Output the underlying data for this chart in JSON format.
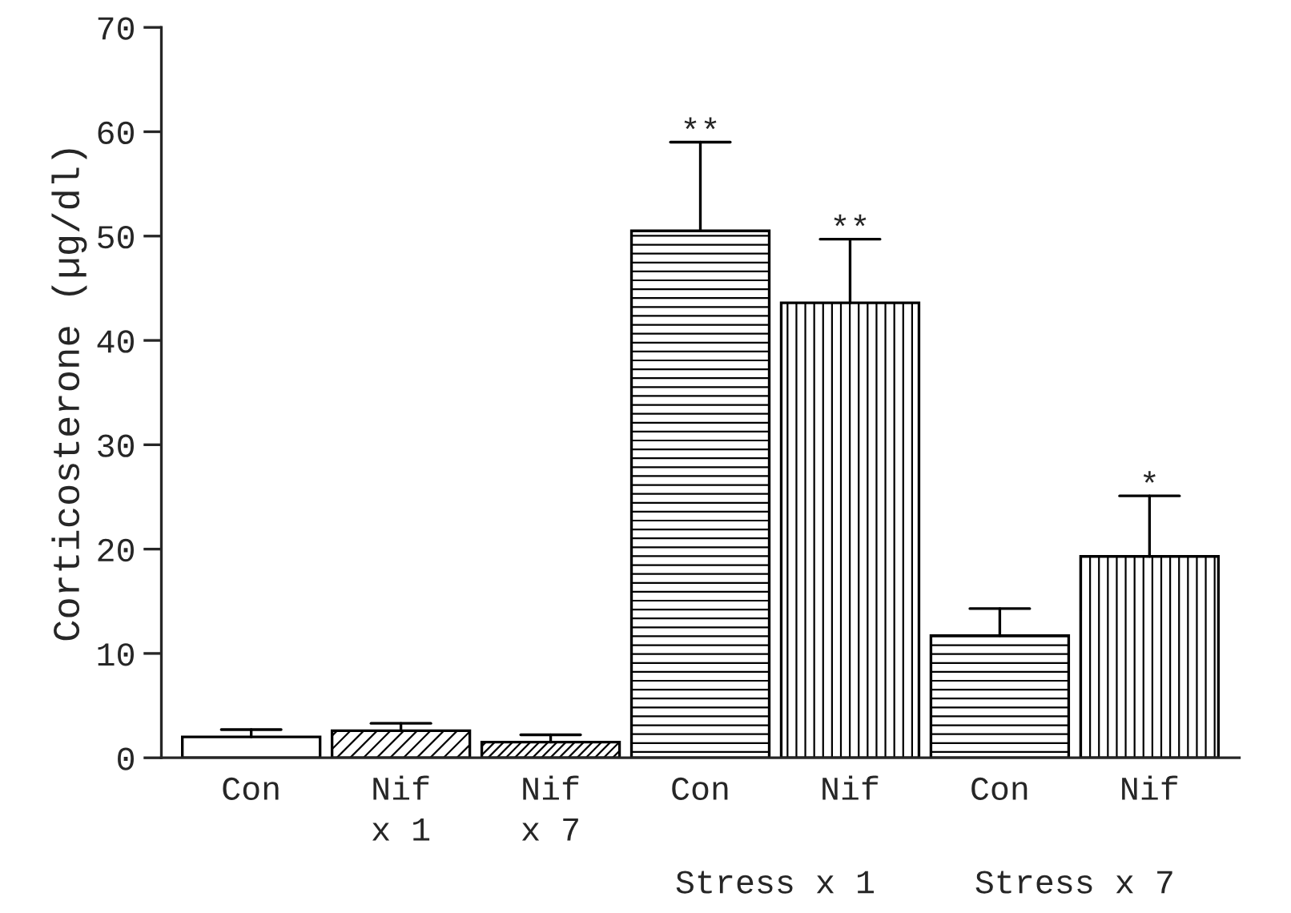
{
  "chart_data": {
    "type": "bar",
    "ylabel": "Corticosterone (µg/dl)",
    "categories": [
      "Con",
      "Nif\nx 1",
      "Nif\nx 7",
      "Con",
      "Nif",
      "Con",
      "Nif"
    ],
    "values": [
      2.0,
      2.6,
      1.5,
      50.5,
      43.6,
      11.7,
      19.3
    ],
    "errors": [
      [
        2.0,
        2.7
      ],
      [
        2.6,
        3.3
      ],
      [
        1.5,
        2.2
      ],
      [
        50.5,
        59.0
      ],
      [
        43.6,
        49.7
      ],
      [
        11.7,
        14.3
      ],
      [
        19.3,
        25.1
      ]
    ],
    "value_labels": [
      null,
      null,
      null,
      "**",
      "**",
      null,
      "*"
    ],
    "annotations": [
      "Stress x 1",
      "Stress x 7"
    ],
    "ylim": [
      0,
      70
    ],
    "yticks": [
      0,
      10,
      20,
      30,
      40,
      50,
      60,
      70
    ],
    "grid": false,
    "legend": false
  }
}
